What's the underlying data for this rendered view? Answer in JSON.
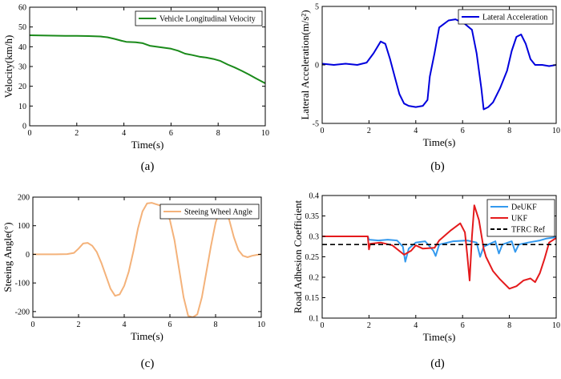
{
  "chart_data": [
    {
      "type": "line",
      "caption": "(a)",
      "xlabel": "Time(s)",
      "ylabel": "Velocity(km/h)",
      "xlim": [
        0,
        10
      ],
      "ylim": [
        0,
        60
      ],
      "xticks": [
        "0",
        "2",
        "4",
        "6",
        "8",
        "10"
      ],
      "yticks": [
        "0",
        "10",
        "20",
        "30",
        "40",
        "50",
        "60"
      ],
      "grid": false,
      "legend_position": "top-right",
      "series": [
        {
          "name": "Vehicle Longitudinal Velocity",
          "color": "#1a8a1a",
          "x": [
            0,
            0.5,
            1,
            1.5,
            2,
            2.5,
            3,
            3.3,
            3.6,
            3.9,
            4.1,
            4.5,
            4.8,
            5.1,
            5.5,
            6,
            6.3,
            6.6,
            6.9,
            7.2,
            7.5,
            7.8,
            8.1,
            8.4,
            8.7,
            9,
            9.3,
            9.6,
            10
          ],
          "y": [
            45.8,
            45.7,
            45.6,
            45.5,
            45.5,
            45.4,
            45.2,
            44.8,
            44.0,
            43.0,
            42.5,
            42.3,
            41.8,
            40.5,
            39.8,
            39.0,
            38.0,
            36.5,
            35.8,
            35.0,
            34.5,
            33.8,
            32.8,
            31.0,
            29.5,
            27.8,
            26.0,
            24.0,
            21.5
          ]
        }
      ]
    },
    {
      "type": "line",
      "caption": "(b)",
      "xlabel": "Time(s)",
      "ylabel": "Lateral Acceleration(m/s²)",
      "xlim": [
        0,
        10
      ],
      "ylim": [
        -5,
        5
      ],
      "xticks": [
        "0",
        "2",
        "4",
        "6",
        "8",
        "10"
      ],
      "yticks": [
        "-5",
        "0",
        "5"
      ],
      "grid": false,
      "legend_position": "top-right",
      "series": [
        {
          "name": "Lateral Acceleration",
          "color": "#0000dd",
          "x": [
            0,
            0.5,
            1,
            1.5,
            1.9,
            2.2,
            2.5,
            2.7,
            2.9,
            3.1,
            3.3,
            3.5,
            3.7,
            4.0,
            4.3,
            4.5,
            4.6,
            4.8,
            5.0,
            5.2,
            5.4,
            5.7,
            5.9,
            6.1,
            6.4,
            6.6,
            6.8,
            6.9,
            7.1,
            7.3,
            7.6,
            7.9,
            8.1,
            8.3,
            8.5,
            8.7,
            8.9,
            9.1,
            9.4,
            9.7,
            10
          ],
          "y": [
            0.1,
            0.0,
            0.1,
            0.0,
            0.2,
            1.0,
            2.0,
            1.8,
            0.5,
            -1.0,
            -2.5,
            -3.3,
            -3.5,
            -3.6,
            -3.5,
            -3.0,
            -1.0,
            1.0,
            3.2,
            3.5,
            3.8,
            3.9,
            3.7,
            3.5,
            3.0,
            1.0,
            -2.0,
            -3.8,
            -3.6,
            -3.2,
            -2.0,
            -0.5,
            1.2,
            2.4,
            2.6,
            1.8,
            0.5,
            0.0,
            0.0,
            -0.1,
            0.0
          ]
        }
      ]
    },
    {
      "type": "line",
      "caption": "(c)",
      "xlabel": "Time(s)",
      "ylabel": "Steeing Angle(°)",
      "xlim": [
        0,
        10
      ],
      "ylim": [
        -220,
        200
      ],
      "xticks": [
        "0",
        "2",
        "4",
        "6",
        "8",
        "10"
      ],
      "yticks": [
        "-200",
        "-100",
        "0",
        "100",
        "200"
      ],
      "grid": false,
      "legend_position": "top-right",
      "series": [
        {
          "name": "Steeing Wheel Angle",
          "color": "#f4b27a",
          "x": [
            0,
            0.5,
            1,
            1.5,
            1.8,
            2.0,
            2.2,
            2.4,
            2.6,
            2.8,
            3.0,
            3.2,
            3.4,
            3.6,
            3.8,
            4.0,
            4.2,
            4.4,
            4.6,
            4.8,
            5.0,
            5.2,
            5.4,
            5.6,
            5.8,
            6.0,
            6.2,
            6.4,
            6.6,
            6.8,
            7.0,
            7.2,
            7.4,
            7.6,
            7.8,
            8.0,
            8.2,
            8.4,
            8.6,
            8.8,
            9.0,
            9.2,
            9.4,
            9.6,
            9.8,
            10
          ],
          "y": [
            0,
            0,
            0,
            1,
            5,
            20,
            38,
            40,
            30,
            8,
            -30,
            -75,
            -120,
            -145,
            -140,
            -110,
            -60,
            10,
            90,
            150,
            178,
            180,
            175,
            170,
            160,
            120,
            50,
            -50,
            -150,
            -215,
            -220,
            -210,
            -150,
            -60,
            30,
            110,
            160,
            165,
            120,
            60,
            15,
            -5,
            -10,
            -5,
            -2,
            0
          ]
        }
      ]
    },
    {
      "type": "line",
      "caption": "(d)",
      "xlabel": "Time(s)",
      "ylabel": "Road Adhesion Coefficient",
      "xlim": [
        0,
        10
      ],
      "ylim": [
        0.1,
        0.4
      ],
      "xticks": [
        "0",
        "2",
        "4",
        "6",
        "8",
        "10"
      ],
      "yticks": [
        "0.1",
        "0.15",
        "0.2",
        "0.25",
        "0.3",
        "0.35",
        "0.4"
      ],
      "grid": false,
      "legend_position": "top-right",
      "series": [
        {
          "name": "DeUKF",
          "color": "#3399ee",
          "x": [
            0,
            1.95,
            2.0,
            2.4,
            2.8,
            3.2,
            3.45,
            3.55,
            3.7,
            4.0,
            4.4,
            4.75,
            4.85,
            5.0,
            5.6,
            6.2,
            6.6,
            6.75,
            6.9,
            7.4,
            7.55,
            7.7,
            8.1,
            8.25,
            8.4,
            8.8,
            9.3,
            9.6,
            10
          ],
          "y": [
            0.3,
            0.3,
            0.292,
            0.29,
            0.292,
            0.29,
            0.275,
            0.238,
            0.27,
            0.285,
            0.288,
            0.265,
            0.252,
            0.28,
            0.288,
            0.29,
            0.285,
            0.25,
            0.275,
            0.288,
            0.258,
            0.28,
            0.288,
            0.262,
            0.28,
            0.285,
            0.29,
            0.295,
            0.298
          ]
        },
        {
          "name": "UKF",
          "color": "#e41a1c",
          "x": [
            0,
            1.95,
            2.0,
            2.05,
            2.5,
            3.0,
            3.5,
            3.8,
            4.0,
            4.3,
            4.8,
            5.0,
            5.5,
            5.9,
            6.1,
            6.2,
            6.3,
            6.4,
            6.5,
            6.7,
            6.9,
            7.0,
            7.3,
            7.6,
            8.0,
            8.3,
            8.6,
            8.9,
            9.1,
            9.3,
            9.5,
            9.7,
            10
          ],
          "y": [
            0.3,
            0.3,
            0.268,
            0.282,
            0.285,
            0.278,
            0.255,
            0.265,
            0.278,
            0.27,
            0.272,
            0.29,
            0.315,
            0.332,
            0.31,
            0.255,
            0.192,
            0.3,
            0.376,
            0.34,
            0.27,
            0.25,
            0.215,
            0.195,
            0.172,
            0.178,
            0.192,
            0.197,
            0.188,
            0.21,
            0.245,
            0.285,
            0.296
          ]
        },
        {
          "name": "TFRC Ref",
          "color": "#000000",
          "x": [
            0,
            10
          ],
          "y": [
            0.28,
            0.28
          ]
        }
      ]
    }
  ]
}
